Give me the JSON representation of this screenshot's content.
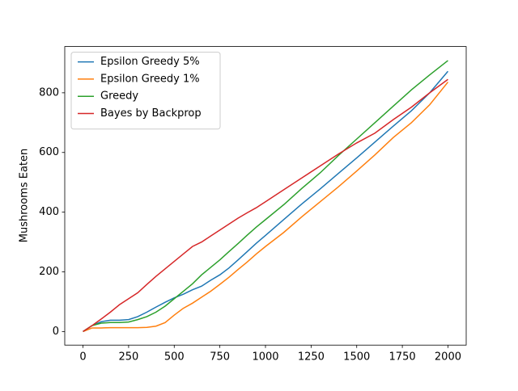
{
  "chart_data": {
    "type": "line",
    "y_label": "Mushrooms Eaten",
    "x": [
      0,
      50,
      100,
      150,
      200,
      250,
      300,
      350,
      400,
      450,
      500,
      550,
      600,
      650,
      700,
      750,
      800,
      850,
      900,
      950,
      1000,
      1100,
      1200,
      1300,
      1400,
      1500,
      1600,
      1700,
      1800,
      1900,
      2000
    ],
    "series": [
      {
        "name": "Epsilon Greedy 5%",
        "color": "#1f77b4",
        "values": [
          0,
          20,
          33,
          38,
          38,
          40,
          50,
          65,
          82,
          98,
          113,
          125,
          140,
          152,
          172,
          190,
          213,
          240,
          268,
          296,
          322,
          375,
          428,
          478,
          530,
          582,
          635,
          688,
          740,
          800,
          872
        ]
      },
      {
        "name": "Epsilon Greedy 1%",
        "color": "#ff7f0e",
        "values": [
          0,
          12,
          12,
          13,
          13,
          13,
          13,
          14,
          18,
          30,
          55,
          78,
          95,
          115,
          135,
          158,
          182,
          208,
          233,
          260,
          285,
          332,
          385,
          435,
          485,
          538,
          592,
          650,
          700,
          760,
          836
        ]
      },
      {
        "name": "Greedy",
        "color": "#2ca02c",
        "values": [
          0,
          20,
          28,
          30,
          30,
          32,
          40,
          50,
          65,
          85,
          110,
          135,
          160,
          190,
          215,
          240,
          268,
          295,
          323,
          350,
          375,
          425,
          480,
          532,
          590,
          645,
          700,
          755,
          810,
          860,
          908
        ]
      },
      {
        "name": "Bayes by Backprop",
        "color": "#d62728",
        "values": [
          0,
          20,
          42,
          65,
          90,
          110,
          130,
          158,
          185,
          210,
          235,
          260,
          285,
          300,
          320,
          340,
          360,
          380,
          398,
          415,
          435,
          475,
          515,
          555,
          595,
          632,
          665,
          710,
          752,
          800,
          845
        ]
      }
    ],
    "xlim": [
      -100,
      2100
    ],
    "xticks": [
      0,
      250,
      500,
      750,
      1000,
      1250,
      1500,
      1750,
      2000
    ],
    "ylim": [
      -45.5,
      955
    ],
    "yticks": [
      0,
      200,
      400,
      600,
      800
    ],
    "grid": false,
    "legend": "upper-left"
  }
}
